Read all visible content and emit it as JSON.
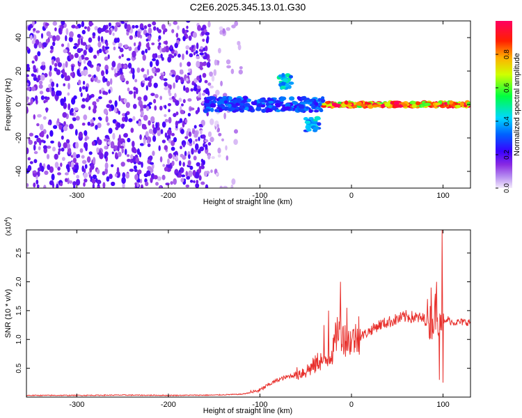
{
  "title": "C2E6.2025.345.13.01.G30",
  "chart_data": [
    {
      "type": "heatmap",
      "title": "C2E6.2025.345.13.01.G30",
      "xlabel": "Height of straight line (km)",
      "ylabel": "Frequency (Hz)",
      "xlim": [
        -355,
        130
      ],
      "ylim": [
        -50,
        50
      ],
      "x_ticks": [
        -300,
        -200,
        -100,
        0,
        100
      ],
      "x_ticklabels": [
        "-300",
        "-200",
        "-100",
        "0",
        "100"
      ],
      "y_ticks": [
        -40,
        -20,
        0,
        20,
        40
      ],
      "y_ticklabels": [
        "-40",
        "-20",
        "0",
        "20",
        "40"
      ],
      "grid": false,
      "colorbar": {
        "label": "Normalized spectral amplitude",
        "range": [
          0,
          1
        ],
        "ticks": [
          0.0,
          0.2,
          0.4,
          0.6,
          0.8
        ],
        "ticklabels": [
          "0.0",
          "0.2",
          "0.4",
          "0.6",
          "0.8"
        ],
        "colormap": "rainbow (white-lilac → purple → blue → cyan → green → yellow → orange → red → magenta)",
        "colors": [
          "#f4ecfc",
          "#8a2be2",
          "#3a00ff",
          "#0060ff",
          "#00d8ff",
          "#00ff40",
          "#d0ff00",
          "#ffb000",
          "#ff2000",
          "#ff0060"
        ]
      },
      "regions": [
        {
          "x_range": [
            -355,
            -155
          ],
          "frequency_range": [
            -50,
            50
          ],
          "amplitude": 0.15,
          "description": "broadband noise"
        },
        {
          "x_range": [
            -155,
            -120
          ],
          "frequency_range": [
            -50,
            50
          ],
          "amplitude": 0.05,
          "description": "sparse noise"
        },
        {
          "x_range": [
            -160,
            -30
          ],
          "center_frequency_hz": 0,
          "amplitude": 0.35,
          "description": "emerging signal"
        },
        {
          "x_range": [
            -80,
            -65
          ],
          "center_frequency_hz": 14,
          "amplitude": 0.5
        },
        {
          "x_range": [
            -50,
            -35
          ],
          "center_frequency_hz": -12,
          "amplitude": 0.45
        },
        {
          "x_range": [
            -30,
            130
          ],
          "center_frequency_hz": 0,
          "amplitude": 0.95,
          "description": "strong narrow signal"
        }
      ]
    },
    {
      "type": "line",
      "ylabel": "SNR (10 * v/v)",
      "y_multiplier_label": "(x10",
      "y_multiplier_exponent": "4",
      "xlabel": "Height of straight line (km)",
      "xlim": [
        -355,
        130
      ],
      "ylim": [
        0,
        2.9
      ],
      "x_ticks": [
        -300,
        -200,
        -100,
        0,
        100
      ],
      "x_ticklabels": [
        "-300",
        "-200",
        "-100",
        "0",
        "100"
      ],
      "y_ticks": [
        0.5,
        1.0,
        1.5,
        2.0,
        2.5
      ],
      "y_ticklabels": [
        "0.5",
        "1.0",
        "1.5",
        "2.0",
        "2.5"
      ],
      "grid": false,
      "color": "#e8302c",
      "series": [
        {
          "x": [
            -355,
            -300,
            -250,
            -200,
            -150,
            -120,
            -110,
            -100,
            -90,
            -80,
            -70,
            -60,
            -50,
            -40,
            -35,
            -30,
            -20,
            -15,
            -10,
            -5,
            0,
            10,
            20,
            30,
            40,
            50,
            60,
            70,
            80,
            85,
            90,
            93,
            95,
            97,
            100,
            105,
            110,
            120,
            130
          ],
          "y": [
            0.03,
            0.03,
            0.035,
            0.03,
            0.035,
            0.05,
            0.08,
            0.12,
            0.22,
            0.3,
            0.35,
            0.4,
            0.45,
            0.55,
            0.65,
            0.6,
            0.8,
            1.2,
            1.1,
            0.95,
            1.0,
            1.05,
            1.15,
            1.25,
            1.3,
            1.35,
            1.4,
            1.38,
            1.35,
            1.3,
            1.35,
            1.6,
            1.4,
            1.5,
            1.25,
            1.35,
            1.3,
            1.3,
            1.3
          ],
          "peaks": [
            {
              "x": -30,
              "y": 1.25
            },
            {
              "x": -25,
              "y": 1.5
            },
            {
              "x": -12,
              "y": 2.0
            },
            {
              "x": -5,
              "y": 1.55
            },
            {
              "x": 8,
              "y": 1.4
            },
            {
              "x": 83,
              "y": 1.7
            },
            {
              "x": 87,
              "y": 1.9
            },
            {
              "x": 93,
              "y": 2.0
            },
            {
              "x": 99,
              "y": 2.9
            }
          ],
          "troughs": [
            {
              "x": 96,
              "y": 0.3
            },
            {
              "x": 100,
              "y": 0.25
            }
          ]
        }
      ]
    }
  ]
}
